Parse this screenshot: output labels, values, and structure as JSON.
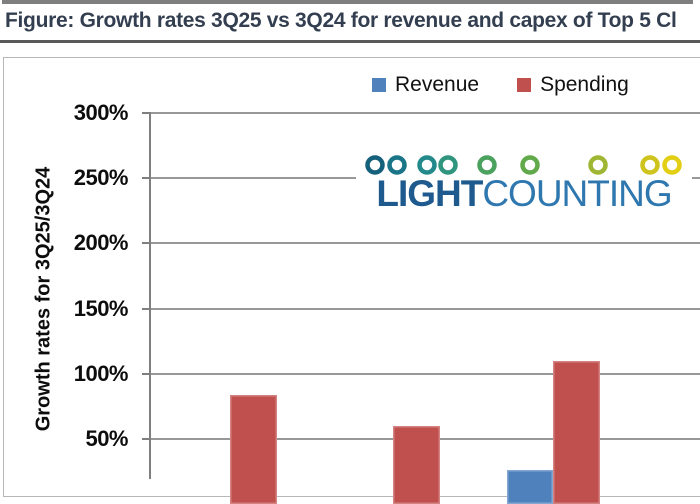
{
  "page": {
    "title": "Figure: Growth rates 3Q25 vs 3Q24 for revenue and capex of Top 5 Cl"
  },
  "legend": {
    "items": [
      {
        "label": "Revenue",
        "color": "#4F81BD"
      },
      {
        "label": "Spending",
        "color": "#C0504D"
      }
    ]
  },
  "logo": {
    "part1": "LIGHT",
    "part2": "COUNTING",
    "part1_color": "#1E5A8E",
    "part2_color": "#2E77AF",
    "dot_colors": [
      "#15617C",
      "#1B7589",
      "#23898B",
      "#2F957E",
      "#4BA15E",
      "#61A94A",
      "#9FB634",
      "#CEC41D",
      "#E2CE12"
    ]
  },
  "chart_data": {
    "type": "bar",
    "title": "Growth rates 3Q25 vs 3Q24 for revenue and capex (figure cropped at right and bottom edges)",
    "ylabel": "Growth rates for 3Q25/3Q24",
    "xlabel": "",
    "ytick_values": [
      300,
      250,
      200,
      150,
      100,
      50
    ],
    "ytick_labels": [
      "300%",
      "250%",
      "200%",
      "150%",
      "100%",
      "50%"
    ],
    "ylim": [
      0,
      300
    ],
    "grid": true,
    "legend_position": "top-center",
    "categories": [
      "",
      "",
      ""
    ],
    "series": [
      {
        "name": "Revenue",
        "color": "#4F81BD",
        "values": [
          null,
          null,
          26
        ]
      },
      {
        "name": "Spending",
        "color": "#C0504D",
        "values": [
          84,
          60,
          110
        ]
      }
    ],
    "note": "0% baseline, x-axis category labels, Revenue bars of groups 1-2, and groups 4-5 lie outside the visible crop"
  }
}
